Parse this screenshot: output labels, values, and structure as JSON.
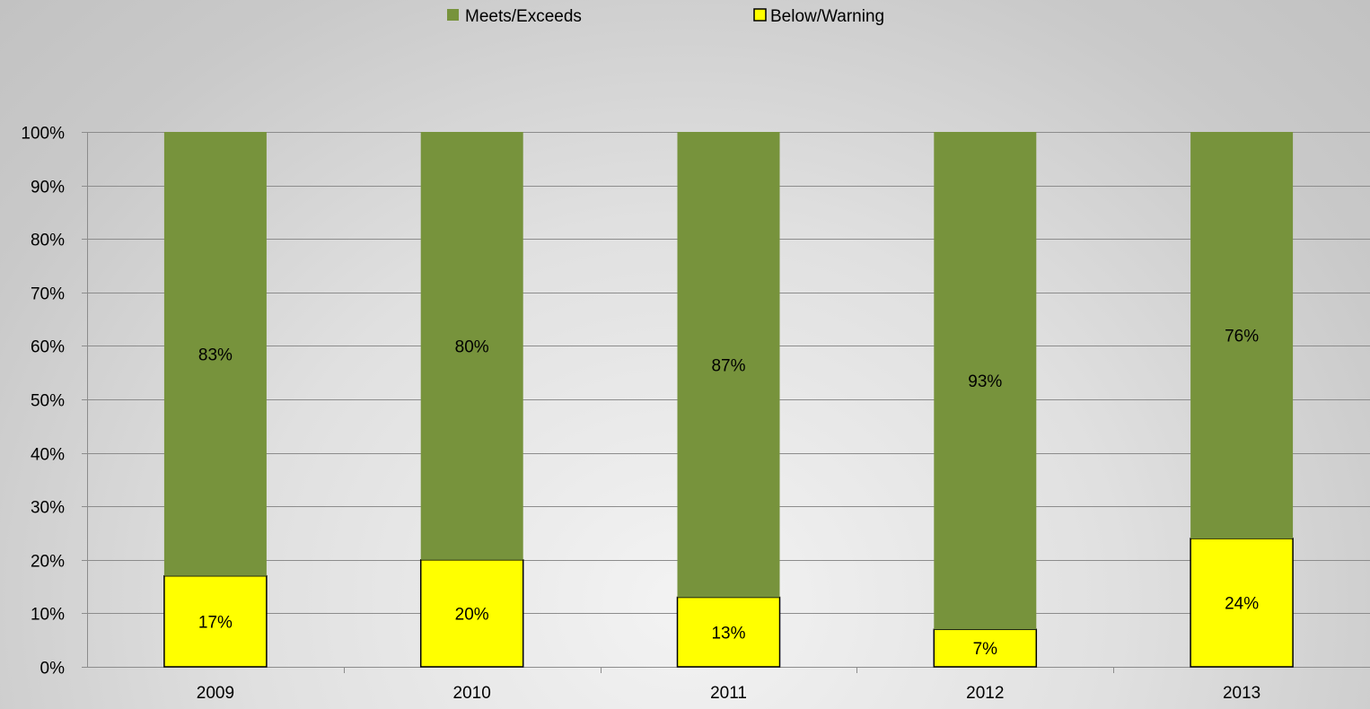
{
  "chart_data": {
    "type": "bar",
    "stacked": true,
    "categories": [
      "2009",
      "2010",
      "2011",
      "2012",
      "2013"
    ],
    "series": [
      {
        "name": "Meets/Exceeds",
        "values": [
          83,
          80,
          87,
          93,
          76
        ],
        "labels": [
          "83%",
          "80%",
          "87%",
          "93%",
          "76%"
        ],
        "color": "#77933c"
      },
      {
        "name": "Below/Warning",
        "values": [
          17,
          20,
          13,
          7,
          24
        ],
        "labels": [
          "17%",
          "20%",
          "13%",
          "7%",
          "24%"
        ],
        "color": "#ffff00"
      }
    ],
    "y_ticks": [
      "0%",
      "10%",
      "20%",
      "30%",
      "40%",
      "50%",
      "60%",
      "70%",
      "80%",
      "90%",
      "100%"
    ],
    "ylim": [
      0,
      100
    ],
    "grid": true,
    "legend_position": "top-center",
    "title": "",
    "xlabel": "",
    "ylabel": ""
  }
}
